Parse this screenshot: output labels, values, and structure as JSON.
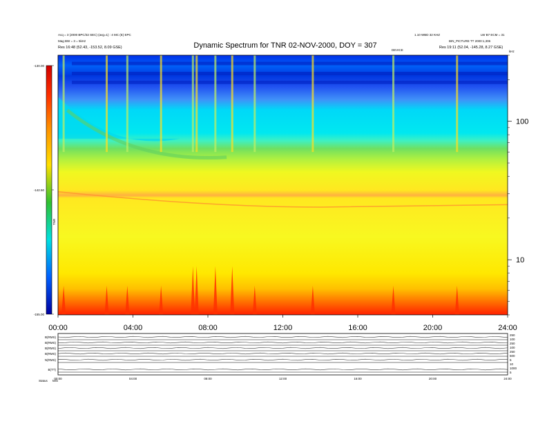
{
  "header": {
    "left_line1": "Acq = 3 (2000 BPC/32 SEC) (avg=1) : 4 MC (E) EPC",
    "left_line2": "Mag BW = 3 = 5kHz",
    "left_line3": "Res    16:48 (52.43, -153.52, 8.09 GSE)",
    "center_title": "Dynamic Spectrum for TNR 02-NOV-2000, DOY = 307",
    "right_line1": "1.10 WBD 32 KHZ",
    "right_line2": "LW B7 ECM = 31",
    "right_line3": "BIN_PICTURE  TT  2000:1,306",
    "right_line4": "Res    19:11 (52.04, -145.28, 8.27 GSE)",
    "marker_label": "DEVICE"
  },
  "colorbar": {
    "ticks": [
      "-130.00",
      "-142.50",
      "-155.00"
    ],
    "label": "TNR"
  },
  "chart_data": [
    {
      "type": "heatmap",
      "title": "Dynamic Spectrum for TNR 02-NOV-2000, DOY = 307",
      "x_axis": {
        "ticks": [
          "00:00",
          "04:00",
          "08:00",
          "12:00",
          "16:00",
          "20:00",
          "24:00"
        ],
        "range_hours": [
          0,
          24
        ]
      },
      "y_axis": {
        "scale": "log",
        "unit": "kHz",
        "ticks": [
          "100",
          "10"
        ],
        "range_khz": [
          4,
          300
        ]
      },
      "colorbar_range": [
        -155.0,
        -130.0
      ],
      "colormap": [
        "#0000a0",
        "#0030f0",
        "#00d8f8",
        "#00f0d0",
        "#40e040",
        "#f0f020",
        "#ffd000",
        "#ff8000",
        "#ff2000",
        "#c00000"
      ],
      "bands": [
        {
          "f_low": 150,
          "f_high": 300,
          "level": "dark-blue"
        },
        {
          "f_low": 75,
          "f_high": 150,
          "level": "cyan"
        },
        {
          "f_low": 45,
          "f_high": 75,
          "level": "green"
        },
        {
          "f_low": 7,
          "f_high": 45,
          "level": "yellow"
        },
        {
          "f_low": 4,
          "f_high": 7,
          "level": "red"
        }
      ],
      "bursts_hours": [
        0.3,
        2.6,
        3.7,
        5.5,
        7.2,
        7.4,
        8.4,
        9.3,
        10.5,
        13.6,
        17.9,
        21.3
      ]
    }
  ],
  "bottom_panel": {
    "row_labels": [
      "B(RMS)",
      "B(RMS)",
      "B(RMS)",
      "B(RMS)",
      "N(RMS)",
      "B(TT)"
    ],
    "right_ticks": [
      "250",
      "100",
      "250",
      "100",
      "250",
      "500",
      "5",
      "10",
      "1000",
      "5"
    ],
    "time_ticks": [
      "00:00",
      "04:00",
      "08:00",
      "12:00",
      "16:00",
      "20:00",
      "24:00"
    ],
    "footer_left": "Status",
    "footer_code": "M/S"
  }
}
